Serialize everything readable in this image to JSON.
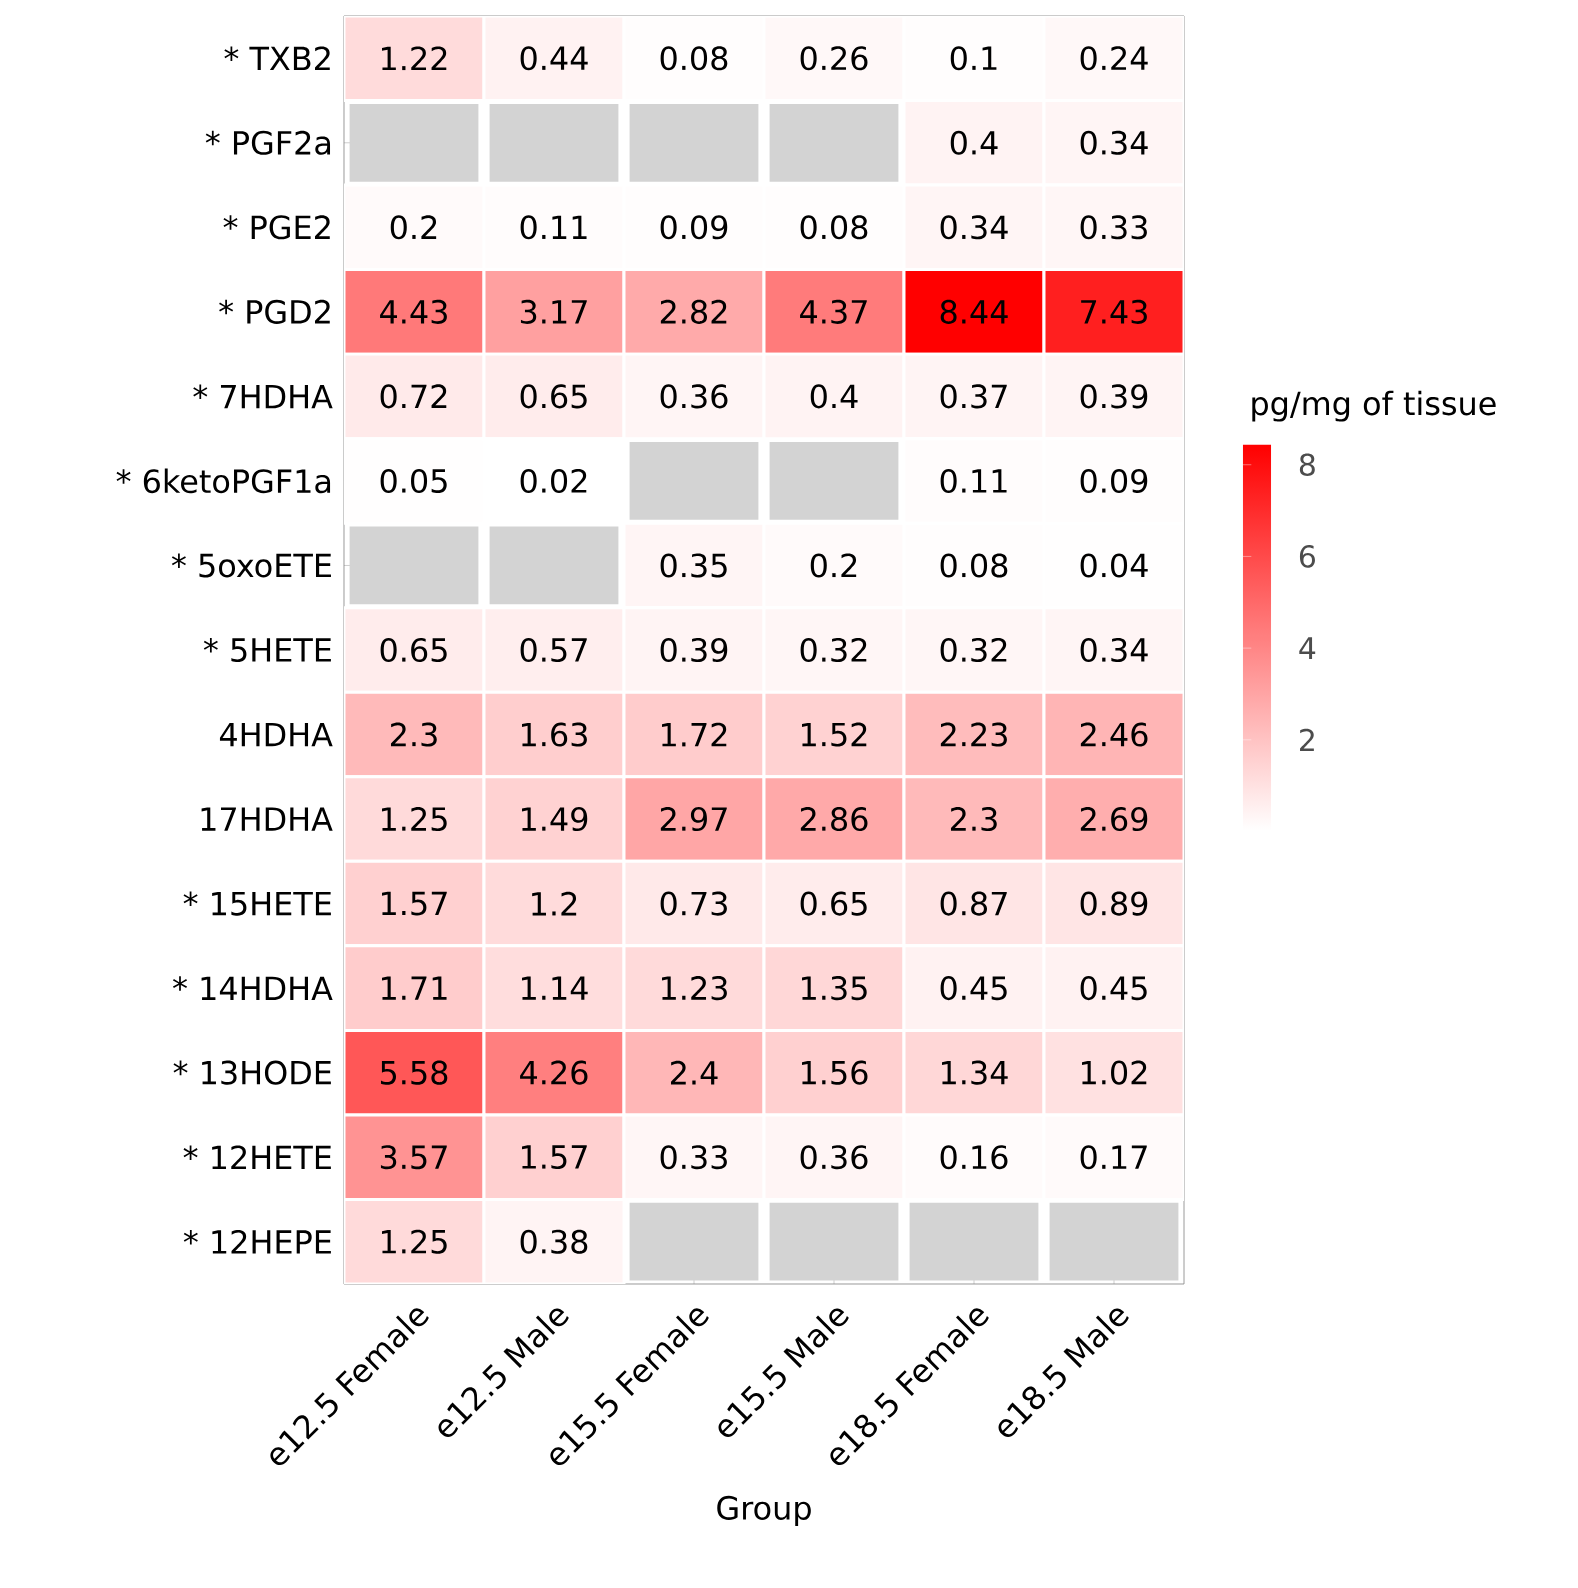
{
  "chart_data": {
    "type": "heatmap",
    "xlabel": "Group",
    "clabel": "pg/mg of tissue",
    "categories": [
      "e12.5 Female",
      "e12.5 Male",
      "e15.5 Female",
      "e15.5 Male",
      "e18.5 Female",
      "e18.5 Male"
    ],
    "y_categories": [
      "*  TXB2",
      "* PGF2a",
      "*  PGE2",
      "* PGD2",
      "* 7HDHA",
      "* 6ketoPGF1a",
      "*  5oxoETE",
      "*  5HETE",
      "4HDHA",
      "17HDHA",
      "*  15HETE",
      "* 14HDHA",
      "* 13HODE",
      "*  12HETE",
      "*  12HEPE"
    ],
    "cells": [
      [
        1.22,
        0.44,
        0.08,
        0.26,
        0.1,
        0.24
      ],
      [
        null,
        null,
        null,
        null,
        0.4,
        0.34
      ],
      [
        0.2,
        0.11,
        0.09,
        0.08,
        0.34,
        0.33
      ],
      [
        4.43,
        3.17,
        2.82,
        4.37,
        8.44,
        7.43
      ],
      [
        0.72,
        0.65,
        0.36,
        0.4,
        0.37,
        0.39
      ],
      [
        0.05,
        0.02,
        null,
        null,
        0.11,
        0.09
      ],
      [
        null,
        null,
        0.35,
        0.2,
        0.08,
        0.04
      ],
      [
        0.65,
        0.57,
        0.39,
        0.32,
        0.32,
        0.34
      ],
      [
        2.3,
        1.63,
        1.72,
        1.52,
        2.23,
        2.46
      ],
      [
        1.25,
        1.49,
        2.97,
        2.86,
        2.3,
        2.69
      ],
      [
        1.57,
        1.2,
        0.73,
        0.65,
        0.87,
        0.89
      ],
      [
        1.71,
        1.14,
        1.23,
        1.35,
        0.45,
        0.45
      ],
      [
        5.58,
        4.26,
        2.4,
        1.56,
        1.34,
        1.02
      ],
      [
        3.57,
        1.57,
        0.33,
        0.36,
        0.16,
        0.17
      ],
      [
        1.25,
        0.38,
        null,
        null,
        null,
        null
      ]
    ],
    "data_labels": true,
    "clim": [
      0.02,
      8.44
    ],
    "cticks": [
      2,
      4,
      6,
      8
    ]
  }
}
